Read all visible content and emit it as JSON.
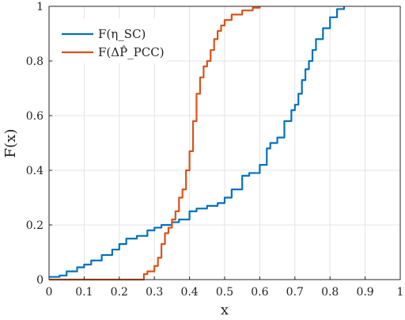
{
  "chart_data": {
    "type": "line",
    "xlabel": "x",
    "ylabel": "F(x)",
    "xlim": [
      0,
      1
    ],
    "ylim": [
      0,
      1
    ],
    "xticks": [
      "0",
      "0.1",
      "0.2",
      "0.3",
      "0.4",
      "0.5",
      "0.6",
      "0.7",
      "0.8",
      "0.9",
      "1"
    ],
    "yticks": [
      "0",
      "0.2",
      "0.4",
      "0.6",
      "0.8",
      "1"
    ],
    "grid": true,
    "legend_position": "top-left",
    "series": [
      {
        "name": "F(η_SC)",
        "color": "#0072BD",
        "x": [
          0.0,
          0.03,
          0.05,
          0.08,
          0.1,
          0.12,
          0.15,
          0.18,
          0.2,
          0.22,
          0.25,
          0.28,
          0.3,
          0.32,
          0.35,
          0.37,
          0.4,
          0.42,
          0.45,
          0.48,
          0.5,
          0.52,
          0.55,
          0.57,
          0.6,
          0.62,
          0.63,
          0.65,
          0.67,
          0.69,
          0.7,
          0.71,
          0.72,
          0.73,
          0.74,
          0.75,
          0.76,
          0.78,
          0.8,
          0.82,
          0.84
        ],
        "y": [
          0.01,
          0.015,
          0.03,
          0.045,
          0.055,
          0.07,
          0.09,
          0.11,
          0.13,
          0.15,
          0.16,
          0.18,
          0.19,
          0.2,
          0.21,
          0.22,
          0.25,
          0.26,
          0.27,
          0.28,
          0.3,
          0.33,
          0.38,
          0.39,
          0.42,
          0.48,
          0.5,
          0.52,
          0.58,
          0.62,
          0.64,
          0.68,
          0.73,
          0.77,
          0.8,
          0.84,
          0.88,
          0.92,
          0.96,
          0.99,
          1.0
        ]
      },
      {
        "name": "F(ΔP̂_PCC)",
        "color": "#D95319",
        "x": [
          0.0,
          0.25,
          0.27,
          0.28,
          0.3,
          0.31,
          0.32,
          0.33,
          0.34,
          0.35,
          0.36,
          0.37,
          0.38,
          0.39,
          0.4,
          0.41,
          0.42,
          0.43,
          0.44,
          0.45,
          0.46,
          0.47,
          0.48,
          0.49,
          0.5,
          0.52,
          0.55,
          0.58,
          0.6
        ],
        "y": [
          0.0,
          0.0,
          0.02,
          0.03,
          0.05,
          0.08,
          0.13,
          0.17,
          0.19,
          0.22,
          0.25,
          0.3,
          0.33,
          0.4,
          0.47,
          0.58,
          0.68,
          0.74,
          0.78,
          0.8,
          0.84,
          0.88,
          0.91,
          0.93,
          0.95,
          0.97,
          0.985,
          0.995,
          1.0
        ]
      }
    ]
  }
}
